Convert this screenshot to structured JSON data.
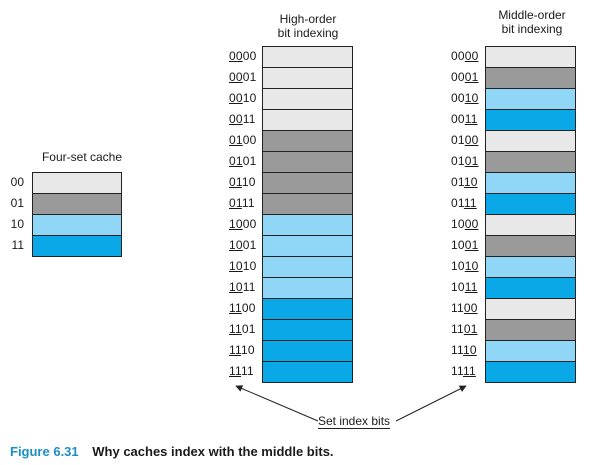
{
  "four_set": {
    "title": "Four-set cache",
    "sets": [
      {
        "label": "00",
        "color_index": 0
      },
      {
        "label": "01",
        "color_index": 1
      },
      {
        "label": "10",
        "color_index": 2
      },
      {
        "label": "11",
        "color_index": 3
      }
    ]
  },
  "high_order": {
    "title_line1": "High-order",
    "title_line2": "bit indexing"
  },
  "middle_order": {
    "title_line1": "Middle-order",
    "title_line2": "bit indexing"
  },
  "addresses": [
    "0000",
    "0001",
    "0010",
    "0011",
    "0100",
    "0101",
    "0110",
    "0111",
    "1000",
    "1001",
    "1010",
    "1011",
    "1100",
    "1101",
    "1110",
    "1111"
  ],
  "colors": {
    "set_00": "#e8e8e8",
    "set_01": "#9a9a9a",
    "set_10": "#8fd6f7",
    "set_11": "#0aa8e6",
    "caption_blue": "#1a8fc4"
  },
  "annotation": "Set index bits",
  "caption": {
    "figure": "Figure 6.31",
    "text": "Why caches index with the middle bits."
  }
}
